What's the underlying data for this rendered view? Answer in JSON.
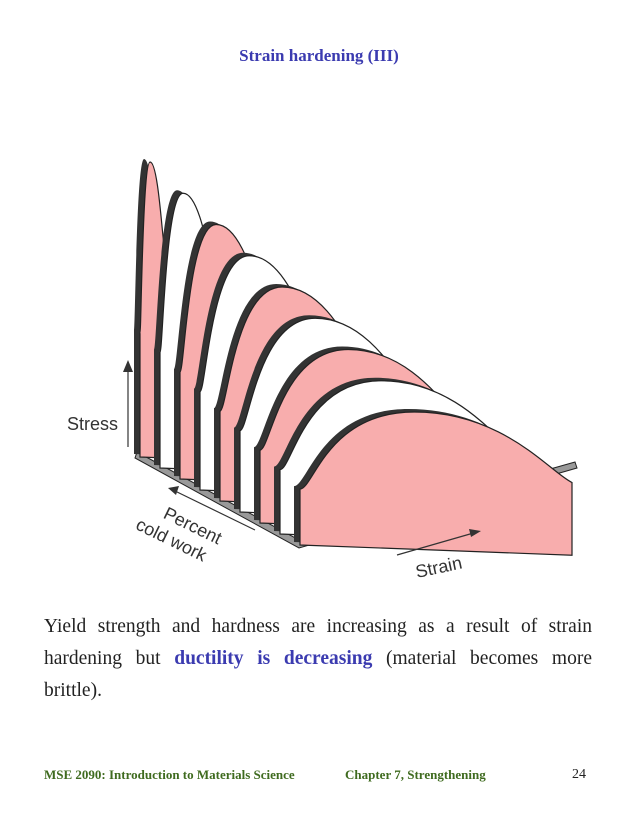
{
  "title": "Strain hardening (III)",
  "figure": {
    "labels": {
      "stress": "Stress",
      "percent_cold_work_line1": "Percent",
      "percent_cold_work_line2": "cold work",
      "strain": "Strain"
    },
    "colors": {
      "pink": "#f8adad",
      "white": "#ffffff",
      "outline": "#222222",
      "floor": "#999999"
    }
  },
  "body": {
    "segment1": "Yield strength and hardness are increasing as a result of strain hardening but ",
    "highlight": "ductility is decreasing",
    "segment2": " (material becomes more brittle)."
  },
  "footer": {
    "course": "MSE 2090: Introduction to Materials Science",
    "chapter": "Chapter 7, Strengthening",
    "page": "24"
  }
}
